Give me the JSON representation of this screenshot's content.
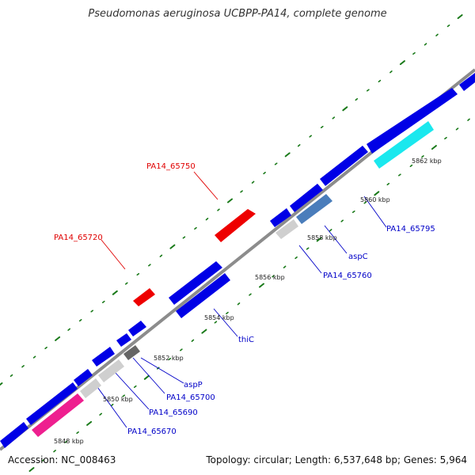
{
  "header": {
    "title": "Pseudomonas aeruginosa UCBPP-PA14, complete genome"
  },
  "footer": {
    "accession": "Accession: NC_008463",
    "summary": "Topology: circular; Length: 6,537,648 bp; Genes: 5,964"
  },
  "colors": {
    "backbone": "#8c8c8c",
    "dots": "#1a7a1a",
    "gene_forward": "#0000e6",
    "gene_reverse": "#ee0000",
    "label_forward": "#0000c8",
    "label_reverse": "#e00000"
  },
  "scale_labels": [
    "5848 kbp",
    "5850 kbp",
    "5852 kbp",
    "5854 kbp",
    "5856 kbp",
    "5858 kbp",
    "5860 kbp",
    "5862 kbp"
  ],
  "gene_labels": [
    "PA14_65670",
    "PA14_65690",
    "PA14_65700",
    "aspP",
    "thiC",
    "PA14_65760",
    "aspC",
    "PA14_65795",
    "PA14_65720",
    "PA14_65750"
  ]
}
